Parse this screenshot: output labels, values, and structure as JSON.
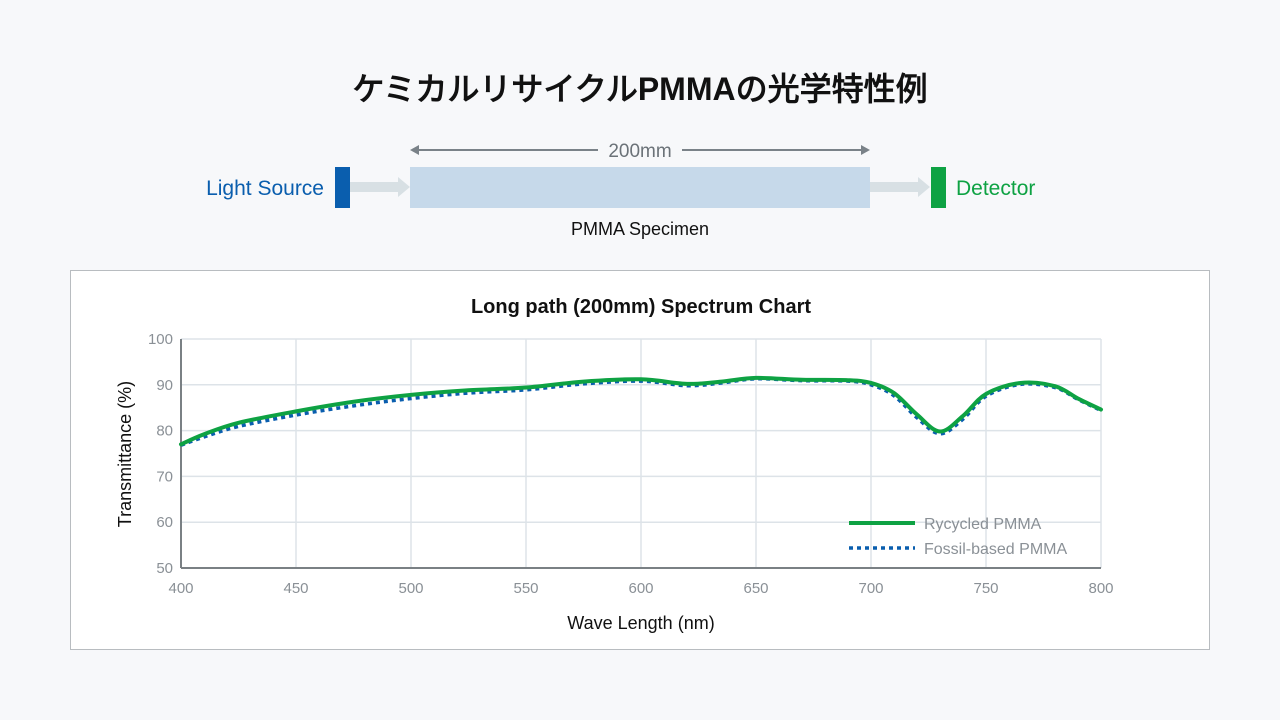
{
  "page_title": "ケミカルリサイクルPMMAの光学特性例",
  "diagram": {
    "light_source": "Light Source",
    "detector": "Detector",
    "length": "200mm",
    "specimen": "PMMA Specimen",
    "colors": {
      "source": "#0a5eae",
      "detector": "#0ea243",
      "specimen": "#c6d9ea",
      "arrow": "#d8e0e4"
    }
  },
  "chart_data": {
    "type": "line",
    "title": "Long path (200mm) Spectrum Chart",
    "xlabel": "Wave Length (nm)",
    "ylabel": "Transmittance (%)",
    "xlim": [
      400,
      800
    ],
    "ylim": [
      50,
      100
    ],
    "xticks": [
      "400",
      "450",
      "500",
      "550",
      "600",
      "650",
      "700",
      "750",
      "800"
    ],
    "yticks": [
      "50",
      "60",
      "70",
      "80",
      "90",
      "100"
    ],
    "grid": true,
    "legend_position": "bottom-right",
    "series": [
      {
        "name": "Rycycled PMMA",
        "color": "#0ea243",
        "style": "solid",
        "x": [
          400,
          410,
          425,
          450,
          475,
          500,
          525,
          550,
          575,
          600,
          620,
          635,
          650,
          670,
          690,
          700,
          710,
          720,
          730,
          740,
          750,
          765,
          780,
          790,
          800
        ],
        "y": [
          77,
          79.2,
          81.7,
          84.2,
          86.3,
          87.8,
          88.8,
          89.4,
          90.7,
          91.2,
          90.2,
          90.7,
          91.5,
          91.1,
          91.0,
          90.4,
          88.2,
          83.5,
          79.8,
          83.2,
          88.0,
          90.4,
          89.7,
          87.0,
          84.6
        ]
      },
      {
        "name": "Fossil-based PMMA",
        "color": "#0a5eae",
        "style": "dotted",
        "x": [
          400,
          410,
          425,
          450,
          475,
          500,
          525,
          550,
          575,
          600,
          620,
          635,
          650,
          670,
          690,
          700,
          710,
          720,
          730,
          740,
          750,
          765,
          780,
          790,
          800
        ],
        "y": [
          76.8,
          78.6,
          80.9,
          83.4,
          85.4,
          87.0,
          88.2,
          88.9,
          90.2,
          90.8,
          89.8,
          90.4,
          91.3,
          90.9,
          90.8,
          90.0,
          87.6,
          82.8,
          79.3,
          82.5,
          87.5,
          90.1,
          89.4,
          86.8,
          84.4
        ]
      }
    ]
  }
}
